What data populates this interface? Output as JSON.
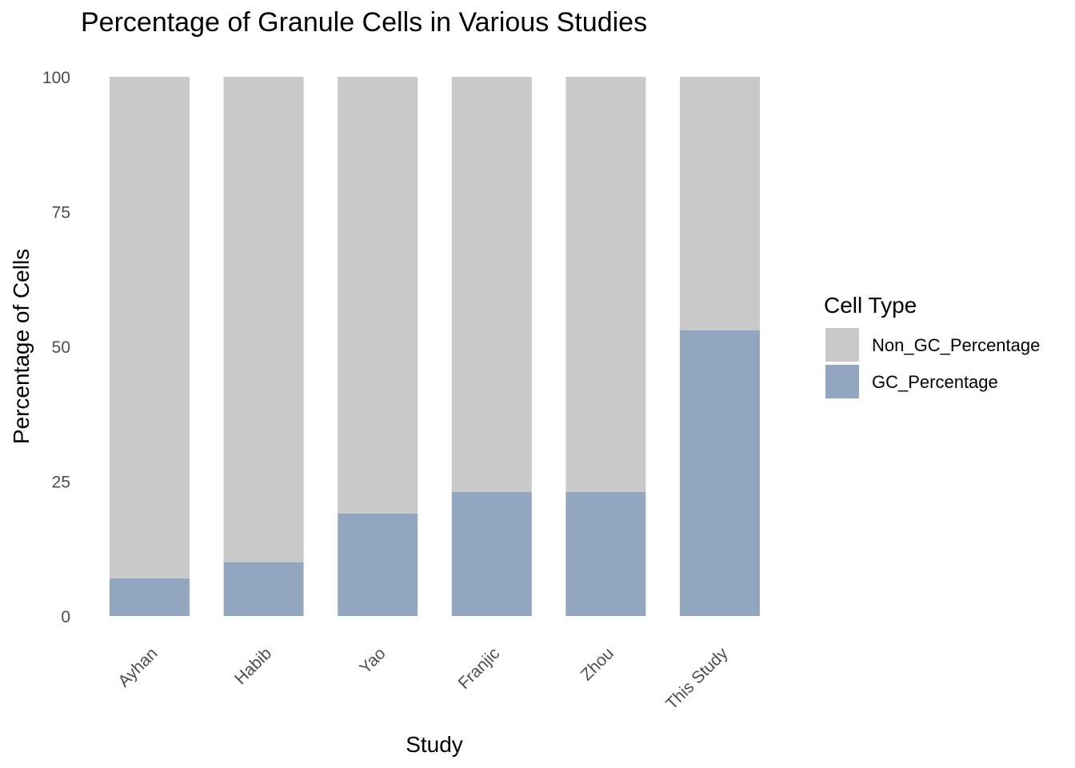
{
  "chart_data": {
    "type": "bar",
    "stacked": true,
    "title": "Percentage of Granule Cells in Various Studies",
    "xlabel": "Study",
    "ylabel": "Percentage of Cells",
    "categories": [
      "Ayhan",
      "Habib",
      "Yao",
      "Franjic",
      "Zhou",
      "This Study"
    ],
    "ylim": [
      0,
      100
    ],
    "yticks": [
      0,
      25,
      50,
      75,
      100
    ],
    "grid": false,
    "legend": {
      "title": "Cell Type",
      "placement": "right"
    },
    "series": [
      {
        "name": "GC_Percentage",
        "color": "#93a6bf",
        "values": [
          7,
          10,
          19,
          23,
          23,
          53
        ]
      },
      {
        "name": "Non_GC_Percentage",
        "color": "#c9c9c9",
        "values": [
          93,
          90,
          81,
          77,
          77,
          47
        ]
      }
    ],
    "legend_order": [
      "Non_GC_Percentage",
      "GC_Percentage"
    ]
  }
}
